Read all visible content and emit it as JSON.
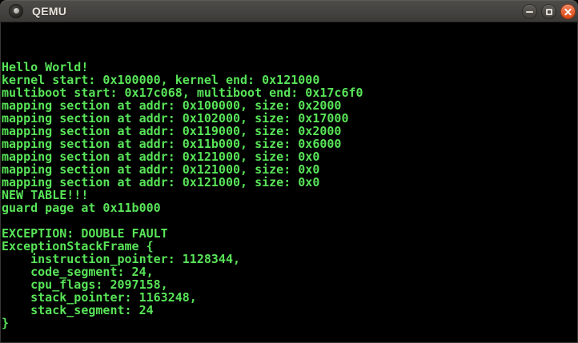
{
  "window": {
    "title": "QEMU",
    "icon": "qemu-app-icon",
    "controls": [
      {
        "name": "minimize",
        "icon": "minimize-icon"
      },
      {
        "name": "maximize",
        "icon": "maximize-icon"
      },
      {
        "name": "close",
        "icon": "close-icon"
      }
    ],
    "colors": {
      "titlebar": "#434240",
      "title_text": "#e6e2da",
      "close_button": "#dd4814"
    }
  },
  "terminal": {
    "foreground": "#58e458",
    "background": "#000000",
    "cols": 80,
    "rows": 25,
    "lines": [
      "",
      "",
      "",
      "Hello World!",
      "kernel start: 0x100000, kernel end: 0x121000",
      "multiboot start: 0x17c068, multiboot end: 0x17c6f0",
      "mapping section at addr: 0x100000, size: 0x2000",
      "mapping section at addr: 0x102000, size: 0x17000",
      "mapping section at addr: 0x119000, size: 0x2000",
      "mapping section at addr: 0x11b000, size: 0x6000",
      "mapping section at addr: 0x121000, size: 0x0",
      "mapping section at addr: 0x121000, size: 0x0",
      "mapping section at addr: 0x121000, size: 0x0",
      "NEW TABLE!!!",
      "guard page at 0x11b000",
      "",
      "EXCEPTION: DOUBLE FAULT",
      "ExceptionStackFrame {",
      "    instruction_pointer: 1128344,",
      "    code_segment: 24,",
      "    cpu_flags: 2097158,",
      "    stack_pointer: 1163248,",
      "    stack_segment: 24",
      "}"
    ]
  }
}
